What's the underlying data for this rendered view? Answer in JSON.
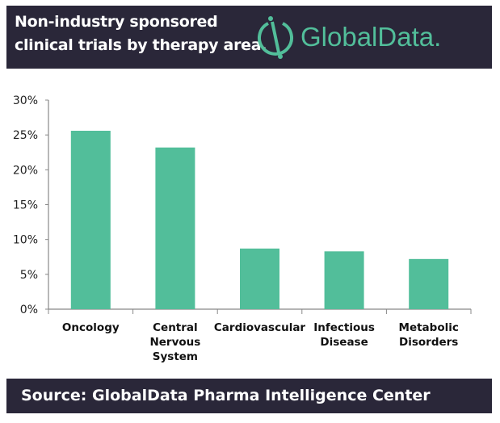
{
  "header": {
    "title_line1": "Non-industry sponsored",
    "title_line2": "clinical trials by therapy area.",
    "logo_text": "GlobalData."
  },
  "footer": {
    "source": "Source:  GlobalData Pharma Intelligence Center"
  },
  "colors": {
    "bar": "#52be9a",
    "band": "#2a2739",
    "logo": "#52be9a"
  },
  "chart_data": {
    "type": "bar",
    "categories": [
      [
        "Oncology"
      ],
      [
        "Central",
        "Nervous",
        "System"
      ],
      [
        "Cardiovascular"
      ],
      [
        "Infectious",
        "Disease"
      ],
      [
        "Metabolic",
        "Disorders"
      ]
    ],
    "values": [
      25.6,
      23.2,
      8.7,
      8.3,
      7.2
    ],
    "ylim": [
      0,
      30
    ],
    "yticks": [
      "0%",
      "5%",
      "10%",
      "15%",
      "20%",
      "25%",
      "30%"
    ],
    "grid": false
  }
}
